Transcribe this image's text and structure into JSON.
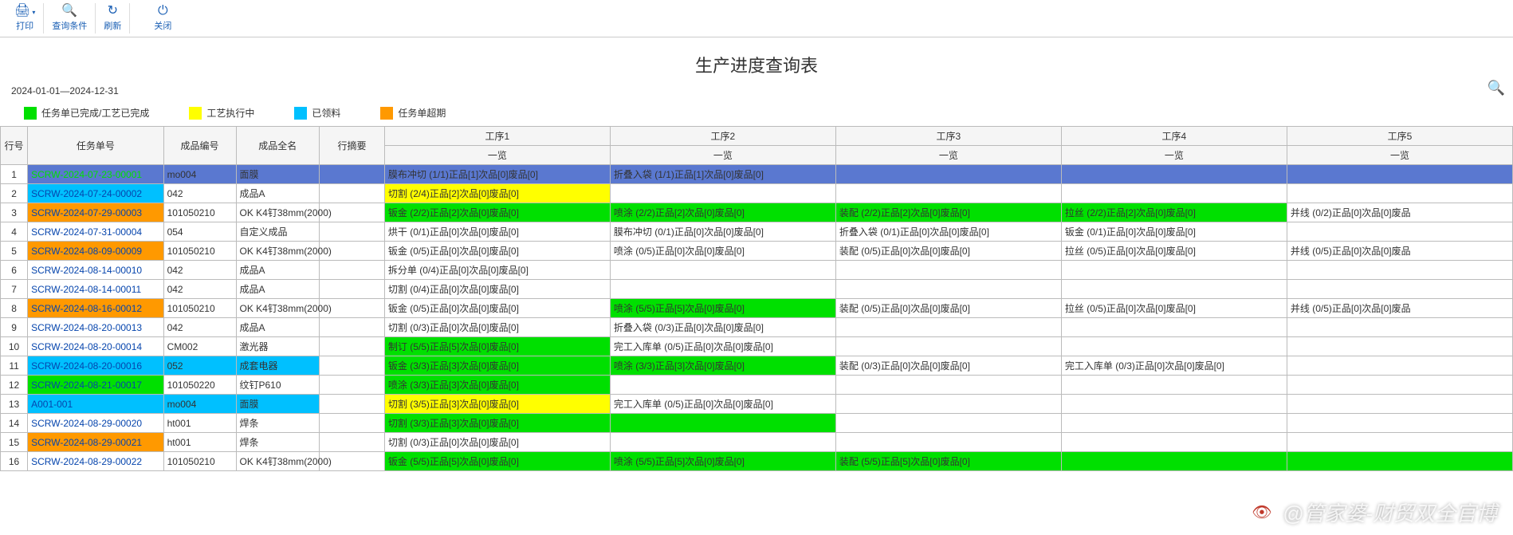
{
  "toolbar": {
    "print": "打印",
    "query": "查询条件",
    "refresh": "刷新",
    "close": "关闭"
  },
  "title": "生产进度查询表",
  "date_range": "2024-01-01—2024-12-31",
  "colors": {
    "done": "#00e000",
    "running": "#ffff00",
    "picked": "#00c0ff",
    "overdue": "#ff9900",
    "header_row_sel": "#5a78d0",
    "link": "#0645ad",
    "grid_border": "#bbbbbb"
  },
  "legend": [
    {
      "color": "#00e000",
      "label": "任务单已完成/工艺已完成"
    },
    {
      "color": "#ffff00",
      "label": "工艺执行中"
    },
    {
      "color": "#00c0ff",
      "label": "已领料"
    },
    {
      "color": "#ff9900",
      "label": "任务单超期"
    }
  ],
  "columns": {
    "rownum": "行号",
    "task": "任务单号",
    "prodcode": "成品编号",
    "prodname": "成品全名",
    "summary": "行摘要",
    "step1": "工序1",
    "step2": "工序2",
    "step3": "工序3",
    "step4": "工序4",
    "step5": "工序5",
    "subview": "一览"
  },
  "rows": [
    {
      "n": 1,
      "task": "SCRW-2024-07-23-00001",
      "task_bg": "#5a78d0",
      "task_color": "#00e000",
      "code": "mo004",
      "code_bg": "#5a78d0",
      "name": "面膜",
      "name_bg": "#5a78d0",
      "summary": "",
      "summary_bg": "#5a78d0",
      "s1": "膜布冲切 (1/1)正品[1]次品[0]废品[0]",
      "s1_bg": "#5a78d0",
      "s2": "折叠入袋 (1/1)正品[1]次品[0]废品[0]",
      "s2_bg": "#5a78d0",
      "s3": "",
      "s3_bg": "#5a78d0",
      "s4": "",
      "s4_bg": "#5a78d0",
      "s5": "",
      "s5_bg": "#5a78d0"
    },
    {
      "n": 2,
      "task": "SCRW-2024-07-24-00002",
      "task_bg": "#00c0ff",
      "task_color": "#0645ad",
      "code": "042",
      "name": "成品A",
      "s1": "切割 (2/4)正品[2]次品[0]废品[0]",
      "s1_bg": "#ffff00",
      "s2": "",
      "s3": "",
      "s4": "",
      "s5": ""
    },
    {
      "n": 3,
      "task": "SCRW-2024-07-29-00003",
      "task_bg": "#ff9900",
      "task_color": "#0645ad",
      "code": "101050210",
      "name": "OK K4钉38mm(2000)",
      "s1": "钣金 (2/2)正品[2]次品[0]废品[0]",
      "s1_bg": "#00e000",
      "s2": "喷涂 (2/2)正品[2]次品[0]废品[0]",
      "s2_bg": "#00e000",
      "s3": "装配 (2/2)正品[2]次品[0]废品[0]",
      "s3_bg": "#00e000",
      "s4": "拉丝 (2/2)正品[2]次品[0]废品[0]",
      "s4_bg": "#00e000",
      "s5": "并线 (0/2)正品[0]次品[0]废品",
      "s5_bg": ""
    },
    {
      "n": 4,
      "task": "SCRW-2024-07-31-00004",
      "task_color": "#0645ad",
      "code": "054",
      "name": "自定义成品",
      "s1": "烘干 (0/1)正品[0]次品[0]废品[0]",
      "s2": "膜布冲切 (0/1)正品[0]次品[0]废品[0]",
      "s3": "折叠入袋 (0/1)正品[0]次品[0]废品[0]",
      "s4": "钣金 (0/1)正品[0]次品[0]废品[0]",
      "s5": ""
    },
    {
      "n": 5,
      "task": "SCRW-2024-08-09-00009",
      "task_bg": "#ff9900",
      "task_color": "#0645ad",
      "code": "101050210",
      "name": "OK K4钉38mm(2000)",
      "s1": "钣金 (0/5)正品[0]次品[0]废品[0]",
      "s2": "喷涂 (0/5)正品[0]次品[0]废品[0]",
      "s3": "装配 (0/5)正品[0]次品[0]废品[0]",
      "s4": "拉丝 (0/5)正品[0]次品[0]废品[0]",
      "s5": "并线 (0/5)正品[0]次品[0]废品"
    },
    {
      "n": 6,
      "task": "SCRW-2024-08-14-00010",
      "task_color": "#0645ad",
      "code": "042",
      "name": "成品A",
      "s1": "拆分单 (0/4)正品[0]次品[0]废品[0]",
      "s2": "",
      "s3": "",
      "s4": "",
      "s5": ""
    },
    {
      "n": 7,
      "task": "SCRW-2024-08-14-00011",
      "task_color": "#0645ad",
      "code": "042",
      "name": "成品A",
      "s1": "切割 (0/4)正品[0]次品[0]废品[0]",
      "s2": "",
      "s3": "",
      "s4": "",
      "s5": ""
    },
    {
      "n": 8,
      "task": "SCRW-2024-08-16-00012",
      "task_bg": "#ff9900",
      "task_color": "#0645ad",
      "code": "101050210",
      "name": "OK K4钉38mm(2000)",
      "s1": "钣金 (0/5)正品[0]次品[0]废品[0]",
      "s2": "喷涂 (5/5)正品[5]次品[0]废品[0]",
      "s2_bg": "#00e000",
      "s3": "装配 (0/5)正品[0]次品[0]废品[0]",
      "s4": "拉丝 (0/5)正品[0]次品[0]废品[0]",
      "s5": "并线 (0/5)正品[0]次品[0]废品"
    },
    {
      "n": 9,
      "task": "SCRW-2024-08-20-00013",
      "task_color": "#0645ad",
      "code": "042",
      "name": "成品A",
      "s1": "切割 (0/3)正品[0]次品[0]废品[0]",
      "s2": "折叠入袋 (0/3)正品[0]次品[0]废品[0]",
      "s3": "",
      "s4": "",
      "s5": ""
    },
    {
      "n": 10,
      "task": "SCRW-2024-08-20-00014",
      "task_color": "#0645ad",
      "code": "CM002",
      "name": "激光器",
      "s1": "制订 (5/5)正品[5]次品[0]废品[0]",
      "s1_bg": "#00e000",
      "s2": "完工入库单 (0/5)正品[0]次品[0]废品[0]",
      "s3": "",
      "s4": "",
      "s5": ""
    },
    {
      "n": 11,
      "task": "SCRW-2024-08-20-00016",
      "task_bg": "#00c0ff",
      "task_color": "#0645ad",
      "code": "052",
      "code_bg": "#00c0ff",
      "name": "成套电器",
      "name_bg": "#00c0ff",
      "s1": "钣金 (3/3)正品[3]次品[0]废品[0]",
      "s1_bg": "#00e000",
      "s2": "喷涂 (3/3)正品[3]次品[0]废品[0]",
      "s2_bg": "#00e000",
      "s3": "装配 (0/3)正品[0]次品[0]废品[0]",
      "s4": "完工入库单 (0/3)正品[0]次品[0]废品[0]",
      "s5": ""
    },
    {
      "n": 12,
      "task": "SCRW-2024-08-21-00017",
      "task_bg": "#00e000",
      "task_color": "#0645ad",
      "code": "101050220",
      "name": "纹钉P610",
      "s1": "喷涂 (3/3)正品[3]次品[0]废品[0]",
      "s1_bg": "#00e000",
      "s2": "",
      "s3": "",
      "s4": "",
      "s5": ""
    },
    {
      "n": 13,
      "task": "A001-001",
      "task_bg": "#00c0ff",
      "task_color": "#0645ad",
      "code": "mo004",
      "code_bg": "#00c0ff",
      "name": "面膜",
      "name_bg": "#00c0ff",
      "s1": "切割 (3/5)正品[3]次品[0]废品[0]",
      "s1_bg": "#ffff00",
      "s2": "完工入库单 (0/5)正品[0]次品[0]废品[0]",
      "s3": "",
      "s4": "",
      "s5": ""
    },
    {
      "n": 14,
      "task": "SCRW-2024-08-29-00020",
      "task_color": "#0645ad",
      "code": "ht001",
      "name": "焊条",
      "s1": "切割 (3/3)正品[3]次品[0]废品[0]",
      "s1_bg": "#00e000",
      "s2": "",
      "s2_bg": "#00e000",
      "s3": "",
      "s4": "",
      "s5": ""
    },
    {
      "n": 15,
      "task": "SCRW-2024-08-29-00021",
      "task_bg": "#ff9900",
      "task_color": "#0645ad",
      "code": "ht001",
      "name": "焊条",
      "s1": "切割 (0/3)正品[0]次品[0]废品[0]",
      "s2": "",
      "s3": "",
      "s4": "",
      "s5": ""
    },
    {
      "n": 16,
      "task": "SCRW-2024-08-29-00022",
      "task_color": "#0645ad",
      "code": "101050210",
      "name": "OK K4钉38mm(2000)",
      "s1": "钣金 (5/5)正品[5]次品[0]废品[0]",
      "s1_bg": "#00e000",
      "s2": "喷涂 (5/5)正品[5]次品[0]废品[0]",
      "s2_bg": "#00e000",
      "s3": "装配 (5/5)正品[5]次品[0]废品[0]",
      "s3_bg": "#00e000",
      "s4": "",
      "s4_bg": "#00e000",
      "s5": "",
      "s5_bg": "#00e000"
    }
  ],
  "watermark": "@管家婆-财贸双全官博"
}
